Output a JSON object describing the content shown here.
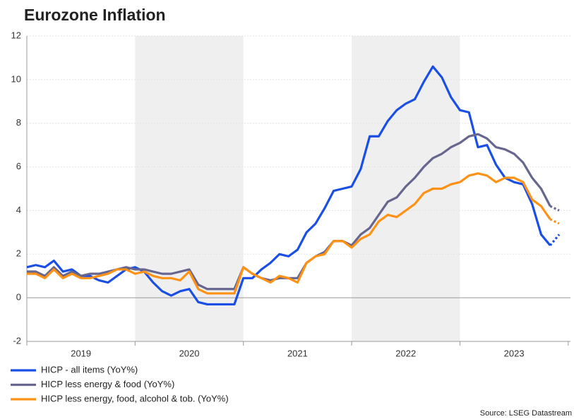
{
  "chart_data": {
    "type": "line",
    "title": "Eurozone Inflation",
    "source": "Source: LSEG Datastream",
    "categories": [
      null,
      null,
      null,
      null,
      null,
      null,
      "2019",
      null,
      null,
      null,
      null,
      null,
      null,
      null,
      null,
      null,
      null,
      null,
      "2020",
      null,
      null,
      null,
      null,
      null,
      null,
      null,
      null,
      null,
      null,
      null,
      "2021",
      null,
      null,
      null,
      null,
      null,
      null,
      null,
      null,
      null,
      null,
      null,
      "2022",
      null,
      null,
      null,
      null,
      null,
      null,
      null,
      null,
      null,
      null,
      null,
      "2023",
      null,
      null,
      null,
      null,
      null
    ],
    "series": [
      {
        "name": "HICP - all items (YoY%)",
        "color": "#1a4fe6",
        "values": [
          1.4,
          1.5,
          1.4,
          1.7,
          1.2,
          1.3,
          1.0,
          1.0,
          0.8,
          0.7,
          1.0,
          1.3,
          1.4,
          1.2,
          0.7,
          0.3,
          0.1,
          0.3,
          0.4,
          -0.2,
          -0.3,
          -0.3,
          -0.3,
          -0.3,
          0.9,
          0.9,
          1.3,
          1.6,
          2.0,
          1.9,
          2.2,
          3.0,
          3.4,
          4.1,
          4.9,
          5.0,
          5.1,
          5.9,
          7.4,
          7.4,
          8.1,
          8.6,
          8.9,
          9.1,
          9.9,
          10.6,
          10.1,
          9.2,
          8.6,
          8.5,
          6.9,
          7.0,
          6.1,
          5.5,
          5.3,
          5.2,
          4.3,
          2.9,
          2.4,
          2.9
        ]
      },
      {
        "name": "HICP less energy & food (YoY%)",
        "color": "#67668f",
        "values": [
          1.2,
          1.2,
          1.0,
          1.4,
          1.0,
          1.2,
          1.0,
          1.1,
          1.1,
          1.2,
          1.3,
          1.4,
          1.3,
          1.3,
          1.2,
          1.1,
          1.1,
          1.2,
          1.3,
          0.6,
          0.4,
          0.4,
          0.4,
          0.4,
          1.4,
          1.1,
          0.9,
          0.8,
          0.9,
          0.9,
          0.9,
          1.6,
          1.9,
          2.1,
          2.6,
          2.6,
          2.4,
          2.9,
          3.2,
          3.8,
          4.4,
          4.6,
          5.1,
          5.5,
          6.0,
          6.4,
          6.6,
          6.9,
          7.1,
          7.4,
          7.5,
          7.3,
          6.9,
          6.8,
          6.6,
          6.2,
          5.5,
          5.0,
          4.2,
          4.0
        ]
      },
      {
        "name": "HICP less energy, food, alcohol & tob. (YoY%)",
        "color": "#ff9214",
        "values": [
          1.1,
          1.1,
          0.9,
          1.3,
          0.9,
          1.1,
          0.9,
          0.9,
          1.0,
          1.1,
          1.3,
          1.3,
          1.1,
          1.2,
          1.0,
          0.9,
          0.9,
          0.8,
          1.2,
          0.4,
          0.2,
          0.2,
          0.2,
          0.2,
          1.4,
          1.1,
          0.9,
          0.7,
          1.0,
          0.9,
          0.7,
          1.6,
          1.9,
          2.0,
          2.6,
          2.6,
          2.3,
          2.7,
          2.9,
          3.5,
          3.8,
          3.7,
          4.0,
          4.3,
          4.8,
          5.0,
          5.0,
          5.2,
          5.3,
          5.6,
          5.7,
          5.6,
          5.3,
          5.5,
          5.5,
          5.3,
          4.5,
          4.2,
          3.6,
          3.4
        ]
      }
    ],
    "ylim": [
      -2,
      12
    ],
    "yticks": [
      -2,
      0,
      2,
      4,
      6,
      8,
      10,
      12
    ],
    "grid": true,
    "dotted_last": true
  }
}
